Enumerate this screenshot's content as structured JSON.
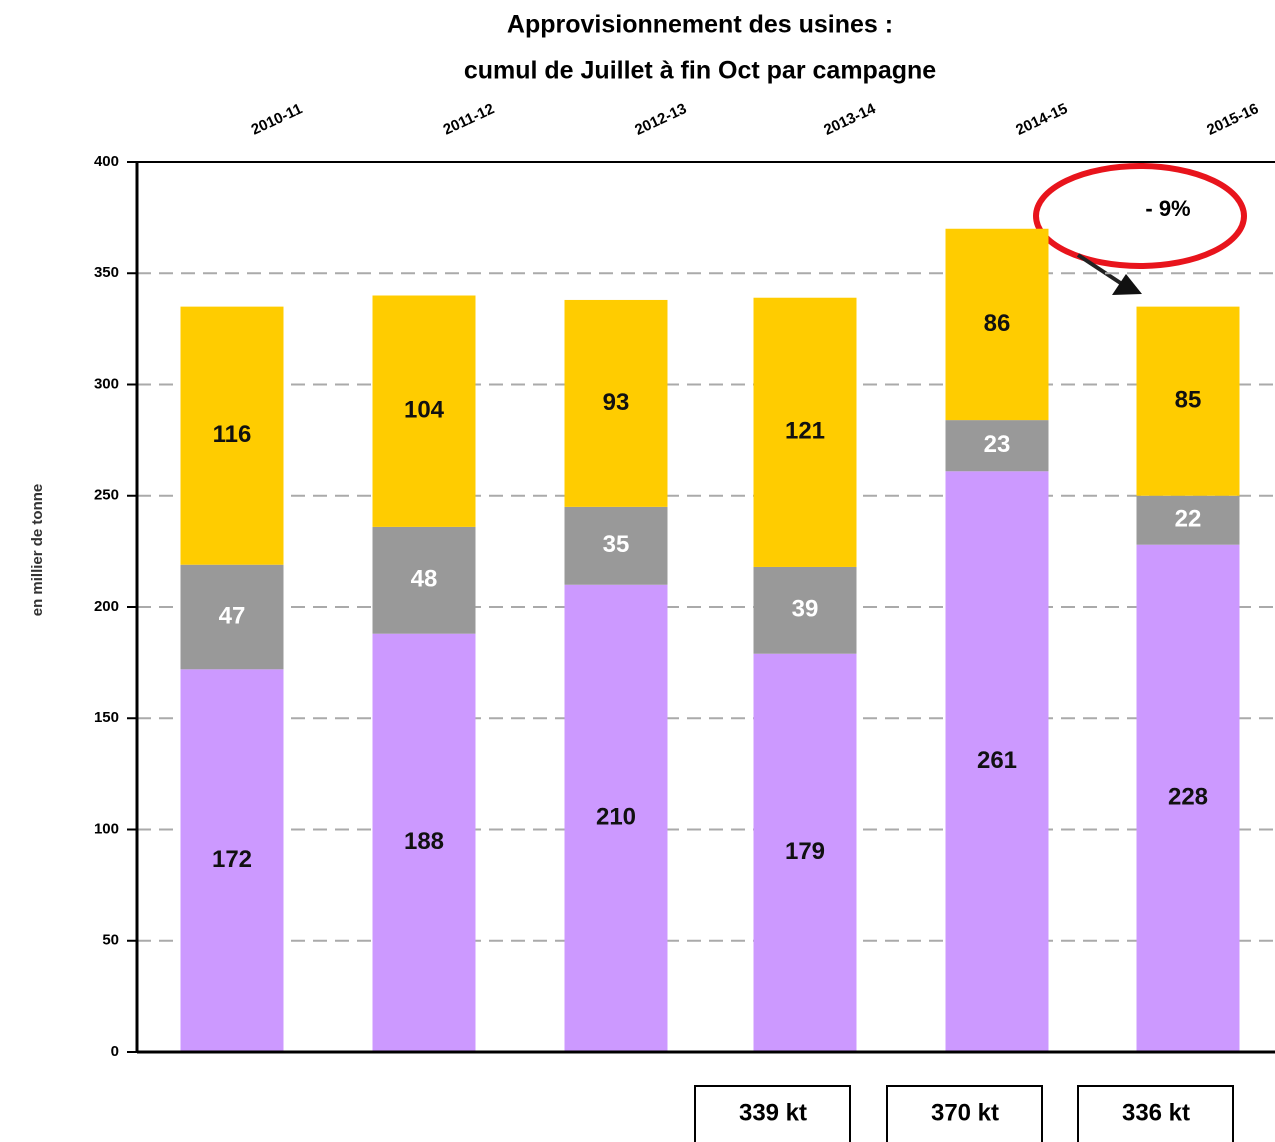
{
  "chart_data": {
    "type": "stacked_bar",
    "title": "Approvisionnement des usines :",
    "subtitle": "cumul de Juillet à fin Oct par campagne",
    "y_label": "en millier de tonne",
    "categories": [
      "2010-11",
      "2011-12",
      "2012-13",
      "2013-14",
      "2014-15",
      "2015-16"
    ],
    "series": [
      {
        "color": "#cc99ff",
        "values": [
          172,
          188,
          210,
          179,
          261,
          228
        ]
      },
      {
        "color": "#999999",
        "values": [
          47,
          48,
          35,
          39,
          23,
          22
        ]
      },
      {
        "color": "#ffcc00",
        "values": [
          116,
          104,
          93,
          121,
          86,
          85
        ]
      }
    ],
    "ylim": [
      0,
      400
    ],
    "yticks": [
      0,
      50,
      100,
      150,
      200,
      250,
      300,
      350,
      400
    ],
    "grid": true,
    "total_labels": [
      null,
      null,
      null,
      "339 kt",
      "370 kt",
      "336 kt"
    ],
    "annotation": "- 9%"
  }
}
